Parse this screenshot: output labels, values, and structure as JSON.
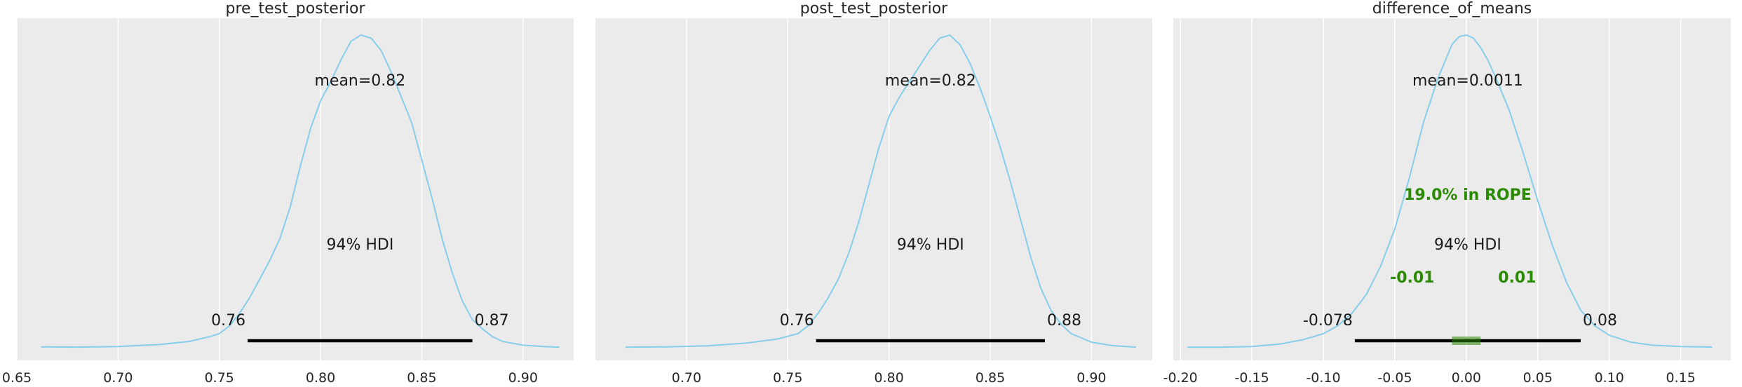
{
  "chart_data": [
    {
      "type": "density",
      "title": "pre_test_posterior",
      "xlim": [
        0.655,
        0.925
      ],
      "xticks": [
        0.65,
        0.7,
        0.75,
        0.8,
        0.85,
        0.9
      ],
      "xtick_labels": [
        "0.65",
        "0.70",
        "0.75",
        "0.80",
        "0.85",
        "0.90"
      ],
      "kde": {
        "x": [
          0.662,
          0.68,
          0.7,
          0.72,
          0.735,
          0.745,
          0.75,
          0.755,
          0.76,
          0.765,
          0.77,
          0.775,
          0.78,
          0.785,
          0.79,
          0.795,
          0.8,
          0.805,
          0.81,
          0.815,
          0.82,
          0.825,
          0.83,
          0.835,
          0.84,
          0.845,
          0.85,
          0.855,
          0.86,
          0.865,
          0.87,
          0.875,
          0.88,
          0.885,
          0.89,
          0.9,
          0.91,
          0.918
        ],
        "y": [
          0.003,
          0.002,
          0.004,
          0.01,
          0.02,
          0.035,
          0.045,
          0.07,
          0.11,
          0.16,
          0.22,
          0.28,
          0.35,
          0.45,
          0.58,
          0.7,
          0.79,
          0.85,
          0.92,
          0.98,
          1.0,
          0.99,
          0.95,
          0.88,
          0.8,
          0.72,
          0.6,
          0.48,
          0.35,
          0.24,
          0.15,
          0.09,
          0.06,
          0.035,
          0.02,
          0.008,
          0.004,
          0.002
        ]
      },
      "mean_label": "mean=0.82",
      "hdi_label": "94% HDI",
      "hdi": [
        0.764,
        0.875
      ],
      "hdi_low_label": "0.76",
      "hdi_high_label": "0.87"
    },
    {
      "type": "density",
      "title": "post_test_posterior",
      "xlim": [
        0.655,
        0.93
      ],
      "xticks": [
        0.7,
        0.75,
        0.8,
        0.85,
        0.9
      ],
      "xtick_labels": [
        "0.70",
        "0.75",
        "0.80",
        "0.85",
        "0.90"
      ],
      "kde": {
        "x": [
          0.67,
          0.69,
          0.71,
          0.73,
          0.745,
          0.755,
          0.76,
          0.765,
          0.77,
          0.775,
          0.78,
          0.785,
          0.79,
          0.795,
          0.8,
          0.805,
          0.81,
          0.815,
          0.82,
          0.825,
          0.83,
          0.835,
          0.84,
          0.845,
          0.85,
          0.855,
          0.86,
          0.865,
          0.87,
          0.875,
          0.88,
          0.885,
          0.89,
          0.9,
          0.91,
          0.922
        ],
        "y": [
          0.002,
          0.003,
          0.006,
          0.015,
          0.028,
          0.045,
          0.07,
          0.11,
          0.16,
          0.22,
          0.3,
          0.4,
          0.52,
          0.64,
          0.74,
          0.8,
          0.85,
          0.9,
          0.95,
          0.99,
          1.0,
          0.97,
          0.91,
          0.83,
          0.74,
          0.64,
          0.53,
          0.41,
          0.29,
          0.19,
          0.12,
          0.075,
          0.045,
          0.018,
          0.007,
          0.002
        ]
      },
      "mean_label": "mean=0.82",
      "hdi_label": "94% HDI",
      "hdi": [
        0.764,
        0.877
      ],
      "hdi_low_label": "0.76",
      "hdi_high_label": "0.88"
    },
    {
      "type": "density",
      "title": "difference_of_means",
      "xlim": [
        -0.205,
        0.185
      ],
      "xticks": [
        -0.2,
        -0.15,
        -0.1,
        -0.05,
        0.0,
        0.05,
        0.1,
        0.15
      ],
      "xtick_labels": [
        "-0.20",
        "-0.15",
        "-0.10",
        "-0.05",
        "0.00",
        "0.05",
        "0.10",
        "0.15"
      ],
      "kde": {
        "x": [
          -0.195,
          -0.17,
          -0.15,
          -0.13,
          -0.115,
          -0.1,
          -0.09,
          -0.08,
          -0.07,
          -0.06,
          -0.05,
          -0.04,
          -0.03,
          -0.02,
          -0.01,
          -0.005,
          0.0,
          0.005,
          0.01,
          0.015,
          0.02,
          0.03,
          0.04,
          0.05,
          0.06,
          0.07,
          0.08,
          0.09,
          0.1,
          0.115,
          0.13,
          0.15,
          0.172
        ],
        "y": [
          0.002,
          0.002,
          0.004,
          0.012,
          0.025,
          0.045,
          0.07,
          0.11,
          0.17,
          0.26,
          0.38,
          0.54,
          0.72,
          0.86,
          0.97,
          0.995,
          1.0,
          0.99,
          0.96,
          0.92,
          0.87,
          0.76,
          0.62,
          0.47,
          0.33,
          0.21,
          0.12,
          0.07,
          0.04,
          0.018,
          0.008,
          0.004,
          0.002
        ]
      },
      "mean_label": "mean=0.0011",
      "hdi_label": "94% HDI",
      "hdi": [
        -0.078,
        0.08
      ],
      "hdi_low_label": "-0.078",
      "hdi_high_label": "0.08",
      "rope": [
        -0.01,
        0.01
      ],
      "rope_label": "19.0% in ROPE",
      "rope_low_label": "-0.01",
      "rope_high_label": "0.01"
    }
  ],
  "colors": {
    "kde": "#87ceeb",
    "background": "#ebebeb",
    "grid": "#ffffff",
    "hdi_bar": "#000000",
    "rope": "#2a8a00"
  }
}
